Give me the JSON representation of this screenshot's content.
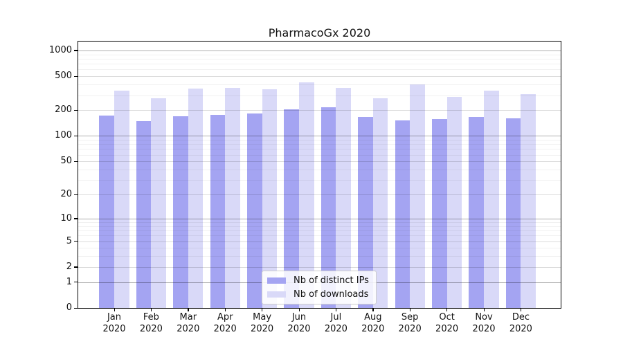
{
  "title": "PharmacoGx 2020",
  "chart_data": {
    "type": "bar",
    "title": "PharmacoGx 2020",
    "categories": [
      "Jan",
      "Feb",
      "Mar",
      "Apr",
      "May",
      "Jun",
      "Jul",
      "Aug",
      "Sep",
      "Oct",
      "Nov",
      "Dec"
    ],
    "category_year": "2020",
    "series": [
      {
        "name": "Nb of distinct IPs",
        "color": "#a4a4f2",
        "values": [
          173,
          150,
          170,
          178,
          183,
          206,
          217,
          167,
          153,
          158,
          166,
          161
        ]
      },
      {
        "name": "Nb of downloads",
        "color": "#d9d9f8",
        "values": [
          338,
          275,
          359,
          366,
          352,
          422,
          368,
          275,
          401,
          286,
          340,
          311
        ]
      }
    ],
    "xlabel": "",
    "ylabel": "",
    "y_scale": "log10(value+1), 0 at baseline",
    "y_axis_ticks": [
      1000,
      500,
      200,
      100,
      50,
      20,
      10,
      5,
      2,
      1,
      0
    ],
    "y_power_gridlines": [
      1,
      10,
      100,
      1000
    ],
    "y_minor_gridlines": [
      3,
      4,
      6,
      7,
      8,
      9,
      30,
      40,
      60,
      70,
      80,
      90,
      300,
      400,
      600,
      700,
      800,
      900
    ],
    "ylim": [
      0,
      1272
    ],
    "grid": "horizontal",
    "legend_position": "inside lower center"
  }
}
